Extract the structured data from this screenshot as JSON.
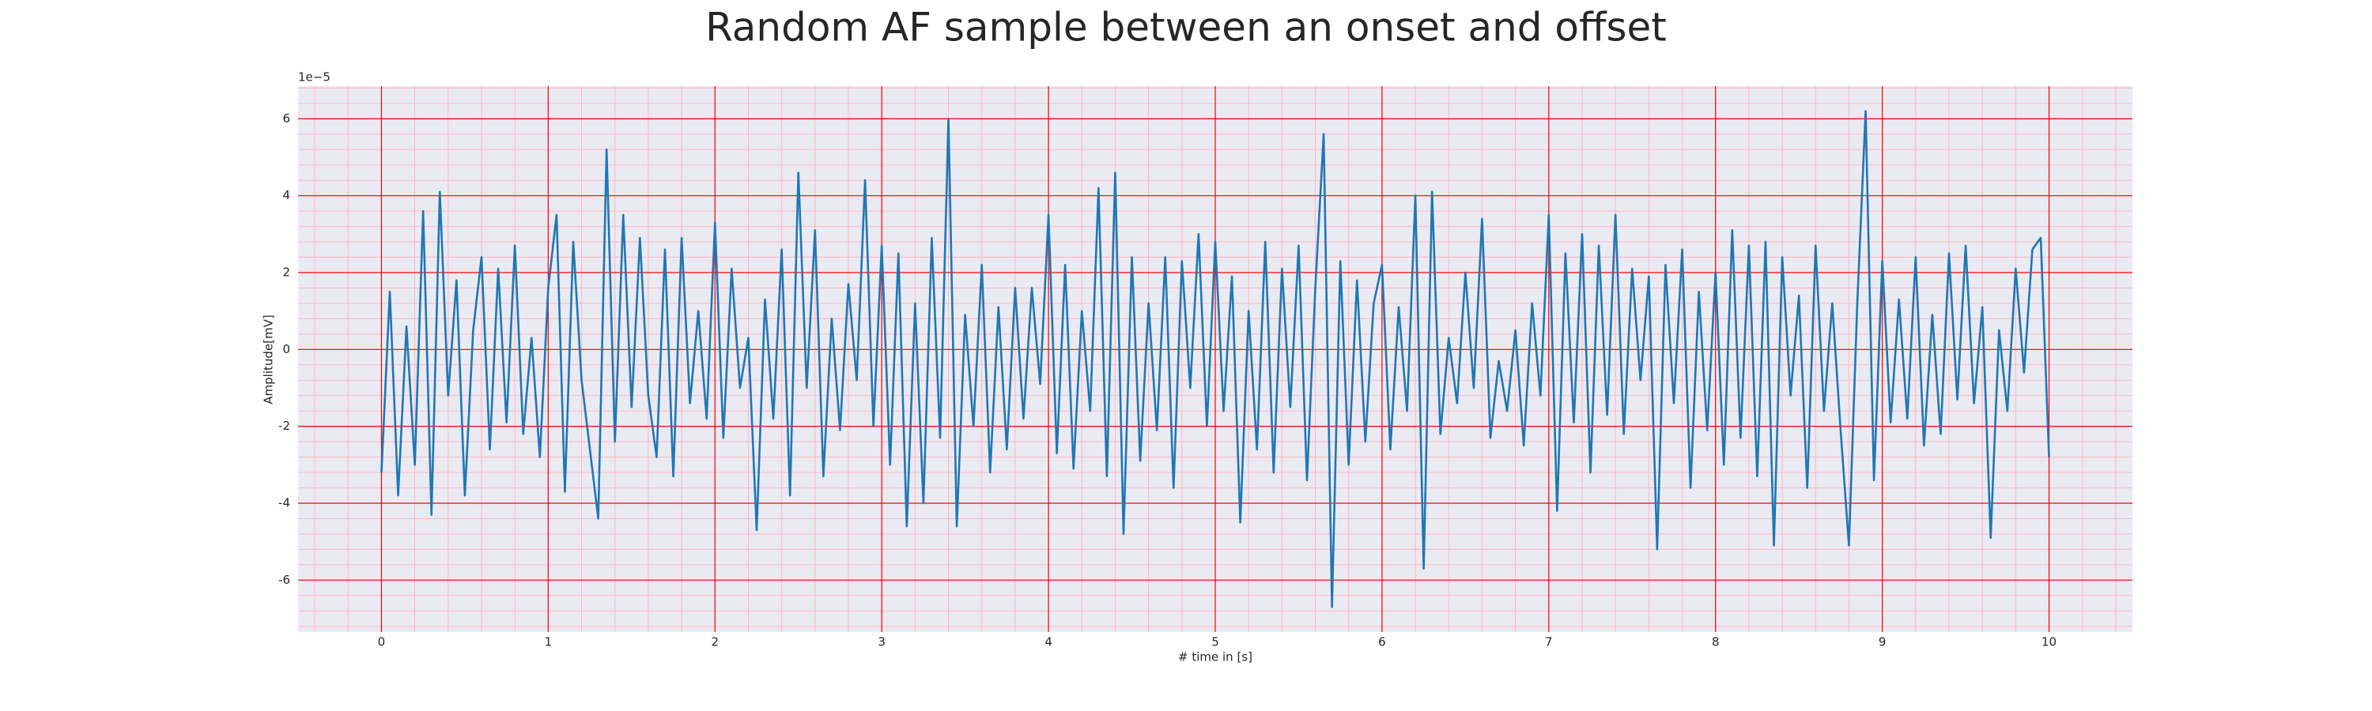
{
  "chart_data": {
    "type": "line",
    "title": "Random AF sample between an onset and offset",
    "xlabel": "# time in [s]",
    "ylabel": "Amplitude[mV]",
    "offset_text": "1e−5",
    "x": [
      0,
      0.05,
      0.1,
      0.15,
      0.2,
      0.25,
      0.3,
      0.35,
      0.4,
      0.45,
      0.5,
      0.55,
      0.6,
      0.65,
      0.7,
      0.75,
      0.8,
      0.85,
      0.9,
      0.95,
      1,
      1.05,
      1.1,
      1.15,
      1.2,
      1.25,
      1.3,
      1.35,
      1.4,
      1.45,
      1.5,
      1.55,
      1.6,
      1.65,
      1.7,
      1.75,
      1.8,
      1.85,
      1.9,
      1.95,
      2,
      2.05,
      2.1,
      2.15,
      2.2,
      2.25,
      2.3,
      2.35,
      2.4,
      2.45,
      2.5,
      2.55,
      2.6,
      2.65,
      2.7,
      2.75,
      2.8,
      2.85,
      2.9,
      2.95,
      3,
      3.05,
      3.1,
      3.15,
      3.2,
      3.25,
      3.3,
      3.35,
      3.4,
      3.45,
      3.5,
      3.55,
      3.6,
      3.65,
      3.7,
      3.75,
      3.8,
      3.85,
      3.9,
      3.95,
      4,
      4.05,
      4.1,
      4.15,
      4.2,
      4.25,
      4.3,
      4.35,
      4.4,
      4.45,
      4.5,
      4.55,
      4.6,
      4.65,
      4.7,
      4.75,
      4.8,
      4.85,
      4.9,
      4.95,
      5,
      5.05,
      5.1,
      5.15,
      5.2,
      5.25,
      5.3,
      5.35,
      5.4,
      5.45,
      5.5,
      5.55,
      5.6,
      5.65,
      5.7,
      5.75,
      5.8,
      5.85,
      5.9,
      5.95,
      6,
      6.05,
      6.1,
      6.15,
      6.2,
      6.25,
      6.3,
      6.35,
      6.4,
      6.45,
      6.5,
      6.55,
      6.6,
      6.65,
      6.7,
      6.75,
      6.8,
      6.85,
      6.9,
      6.95,
      7,
      7.05,
      7.1,
      7.15,
      7.2,
      7.25,
      7.3,
      7.35,
      7.4,
      7.45,
      7.5,
      7.55,
      7.6,
      7.65,
      7.7,
      7.75,
      7.8,
      7.85,
      7.9,
      7.95,
      8,
      8.05,
      8.1,
      8.15,
      8.2,
      8.25,
      8.3,
      8.35,
      8.4,
      8.45,
      8.5,
      8.55,
      8.6,
      8.65,
      8.7,
      8.75,
      8.8,
      8.85,
      8.9,
      8.95,
      9,
      9.05,
      9.1,
      9.15,
      9.2,
      9.25,
      9.3,
      9.35,
      9.4,
      9.45,
      9.5,
      9.55,
      9.6,
      9.65,
      9.7,
      9.75,
      9.8,
      9.85,
      9.9,
      9.95,
      10
    ],
    "series": [
      {
        "name": "AF sample",
        "color": "#1f77b4",
        "values": [
          -3.2,
          1.5,
          -3.8,
          0.6,
          -3.0,
          3.6,
          -4.3,
          4.1,
          -1.2,
          1.8,
          -3.8,
          0.5,
          2.4,
          -2.6,
          2.1,
          -1.9,
          2.7,
          -2.2,
          0.3,
          -2.8,
          1.6,
          3.5,
          -3.7,
          2.8,
          -0.8,
          -2.6,
          -4.4,
          5.2,
          -2.4,
          3.5,
          -1.5,
          2.9,
          -1.2,
          -2.8,
          2.6,
          -3.3,
          2.9,
          -1.4,
          1.0,
          -1.8,
          3.3,
          -2.3,
          2.1,
          -1.0,
          0.3,
          -4.7,
          1.3,
          -1.8,
          2.6,
          -3.8,
          4.6,
          -1.0,
          3.1,
          -3.3,
          0.8,
          -2.1,
          1.7,
          -0.8,
          4.4,
          -2.0,
          2.7,
          -3.0,
          2.5,
          -4.6,
          1.2,
          -4.0,
          2.9,
          -2.3,
          6.0,
          -4.6,
          0.9,
          -2.0,
          2.2,
          -3.2,
          1.1,
          -2.6,
          1.6,
          -1.8,
          1.6,
          -0.9,
          3.5,
          -2.7,
          2.2,
          -3.1,
          1.0,
          -1.6,
          4.2,
          -3.3,
          4.6,
          -4.8,
          2.4,
          -2.9,
          1.2,
          -2.1,
          2.4,
          -3.6,
          2.3,
          -1.0,
          3.0,
          -2.0,
          2.8,
          -1.6,
          1.9,
          -4.5,
          1.0,
          -2.6,
          2.8,
          -3.2,
          2.1,
          -1.5,
          2.7,
          -3.4,
          1.6,
          5.6,
          -6.7,
          2.3,
          -3.0,
          1.8,
          -2.4,
          1.2,
          2.2,
          -2.6,
          1.1,
          -1.6,
          4.0,
          -5.7,
          4.1,
          -2.2,
          0.3,
          -1.4,
          2.0,
          -1.0,
          3.4,
          -2.3,
          -0.3,
          -1.6,
          0.5,
          -2.5,
          1.2,
          -1.2,
          3.5,
          -4.2,
          2.5,
          -1.9,
          3.0,
          -3.2,
          2.7,
          -1.7,
          3.5,
          -2.2,
          2.1,
          -0.8,
          1.9,
          -5.2,
          2.2,
          -1.4,
          2.6,
          -3.6,
          1.5,
          -2.1,
          2.0,
          -3.0,
          3.1,
          -2.3,
          2.7,
          -3.3,
          2.8,
          -5.1,
          2.4,
          -1.2,
          1.4,
          -3.6,
          2.7,
          -1.6,
          1.2,
          -2.1,
          -5.1,
          1.2,
          6.2,
          -3.4,
          2.3,
          -1.9,
          1.3,
          -1.8,
          2.4,
          -2.5,
          0.9,
          -2.2,
          2.5,
          -1.3,
          2.7,
          -1.4,
          1.1,
          -4.9,
          0.5,
          -1.6,
          2.1,
          -0.6,
          2.6,
          2.9,
          -2.8
        ]
      }
    ],
    "xlim": [
      -0.5,
      10.5
    ],
    "xticks": [
      0,
      1,
      2,
      3,
      4,
      5,
      6,
      7,
      8,
      9,
      10
    ],
    "ylim": [
      -7.35,
      6.85
    ],
    "yticks": [
      -6,
      -4,
      -2,
      0,
      2,
      4,
      6
    ],
    "grid": true,
    "grid_color": "#ff0000",
    "minor_grid": true,
    "minor_grid_color": "#ffb6c1",
    "background": "#eaeaf2"
  }
}
